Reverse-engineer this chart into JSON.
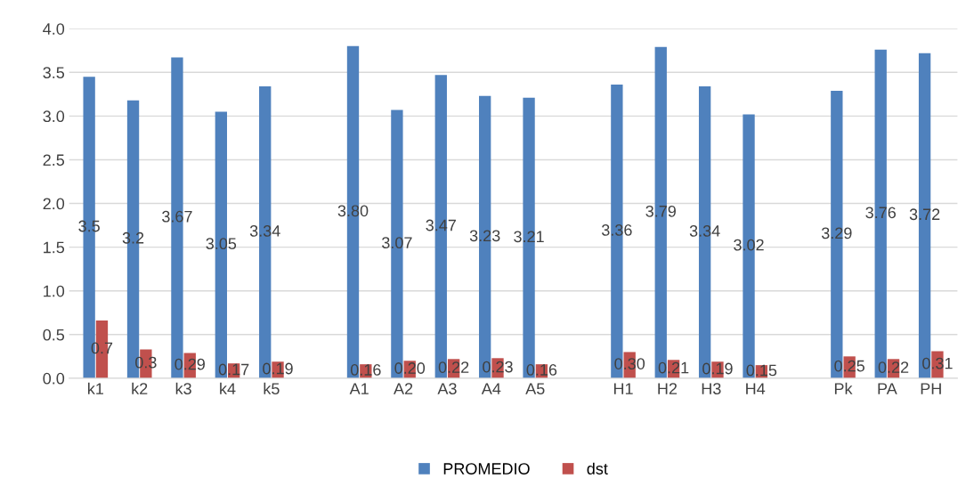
{
  "chart_data": {
    "type": "bar",
    "categories": [
      "k1",
      "k2",
      "k3",
      "k4",
      "k5",
      null,
      "A1",
      "A2",
      "A3",
      "A4",
      "A5",
      null,
      "H1",
      "H2",
      "H3",
      "H4",
      null,
      "Pk",
      "PA",
      "PH"
    ],
    "series": [
      {
        "name": "PROMEDIO",
        "color": "#4f81bd",
        "values": [
          3.45,
          3.18,
          3.67,
          3.05,
          3.34,
          null,
          3.8,
          3.07,
          3.47,
          3.23,
          3.21,
          null,
          3.36,
          3.79,
          3.34,
          3.02,
          null,
          3.29,
          3.76,
          3.72
        ],
        "value_labels": [
          "3.5",
          "3.2",
          "3.67",
          "3.05",
          "3.34",
          null,
          "3.80",
          "3.07",
          "3.47",
          "3.23",
          "3.21",
          null,
          "3.36",
          "3.79",
          "3.34",
          "3.02",
          null,
          "3.29",
          "3.76",
          "3.72"
        ]
      },
      {
        "name": "dst",
        "color": "#c0504d",
        "values": [
          0.66,
          0.33,
          0.29,
          0.17,
          0.19,
          null,
          0.16,
          0.2,
          0.22,
          0.23,
          0.16,
          null,
          0.3,
          0.21,
          0.19,
          0.15,
          null,
          0.25,
          0.22,
          0.31
        ],
        "value_labels": [
          "0.7",
          "0.3",
          "0.29",
          "0.17",
          "0.19",
          null,
          "0.16",
          "0.20",
          "0.22",
          "0.23",
          "0.16",
          null,
          "0.30",
          "0.21",
          "0.19",
          "0.15",
          null,
          "0.25",
          "0.22",
          "0.31"
        ]
      }
    ],
    "ylim": [
      0,
      4
    ],
    "yticks": [
      {
        "value": 0,
        "label": "0.0"
      },
      {
        "value": 0.5,
        "label": "0.5"
      },
      {
        "value": 1,
        "label": "1.0"
      },
      {
        "value": 1.5,
        "label": "1.5"
      },
      {
        "value": 2,
        "label": "2.0"
      },
      {
        "value": 2.5,
        "label": "2.5"
      },
      {
        "value": 3,
        "label": "3.0"
      },
      {
        "value": 3.5,
        "label": "3.5"
      },
      {
        "value": 4,
        "label": "4.0"
      }
    ],
    "grid": "y",
    "legend": "bottom"
  }
}
